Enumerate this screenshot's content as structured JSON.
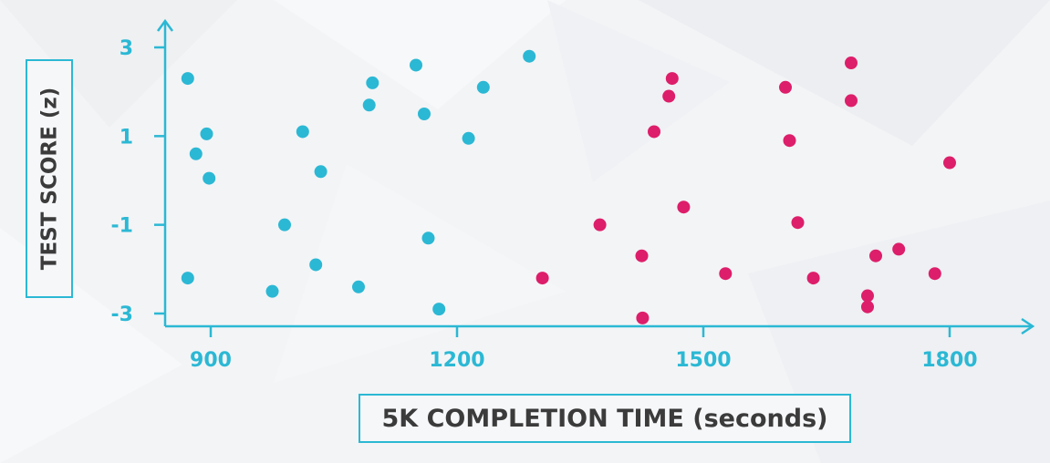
{
  "chart_data": {
    "type": "scatter",
    "xlabel": "5K COMPLETION TIME (seconds)",
    "ylabel": "TEST SCORE (z)",
    "xlim": [
      840,
      1900
    ],
    "ylim": [
      -3.3,
      3.5
    ],
    "xticks": [
      900,
      1200,
      1500,
      1800
    ],
    "xtick_labels": [
      "900",
      "1200",
      "1500",
      "1800"
    ],
    "yticks": [
      3,
      1,
      -1,
      -3
    ],
    "ytick_labels": [
      "3",
      "1",
      "-1",
      "-3"
    ],
    "grid": false,
    "series": [
      {
        "color": "#2bb8d4",
        "points": [
          [
            872,
            2.3
          ],
          [
            872,
            -2.2
          ],
          [
            882,
            0.6
          ],
          [
            895,
            1.05
          ],
          [
            898,
            0.05
          ],
          [
            975,
            -2.5
          ],
          [
            990,
            -1.0
          ],
          [
            1012,
            1.1
          ],
          [
            1028,
            -1.9
          ],
          [
            1034,
            0.2
          ],
          [
            1080,
            -2.4
          ],
          [
            1093,
            1.7
          ],
          [
            1097,
            2.2
          ],
          [
            1150,
            2.6
          ],
          [
            1160,
            1.5
          ],
          [
            1165,
            -1.3
          ],
          [
            1178,
            -2.9
          ],
          [
            1214,
            0.95
          ],
          [
            1232,
            2.1
          ],
          [
            1288,
            2.8
          ]
        ]
      },
      {
        "color": "#dd1e6a",
        "points": [
          [
            1304,
            -2.2
          ],
          [
            1374,
            -1.0
          ],
          [
            1425,
            -1.7
          ],
          [
            1426,
            -3.1
          ],
          [
            1440,
            1.1
          ],
          [
            1458,
            1.9
          ],
          [
            1462,
            2.3
          ],
          [
            1476,
            -0.6
          ],
          [
            1527,
            -2.1
          ],
          [
            1600,
            2.1
          ],
          [
            1605,
            0.9
          ],
          [
            1615,
            -0.95
          ],
          [
            1634,
            -2.2
          ],
          [
            1680,
            2.65
          ],
          [
            1680,
            1.8
          ],
          [
            1700,
            -2.6
          ],
          [
            1700,
            -2.85
          ],
          [
            1710,
            -1.7
          ],
          [
            1738,
            -1.55
          ],
          [
            1782,
            -2.1
          ],
          [
            1800,
            0.4
          ]
        ]
      }
    ],
    "tick_color": "#2bb8d4",
    "axis_color": "#2bb8d4"
  }
}
